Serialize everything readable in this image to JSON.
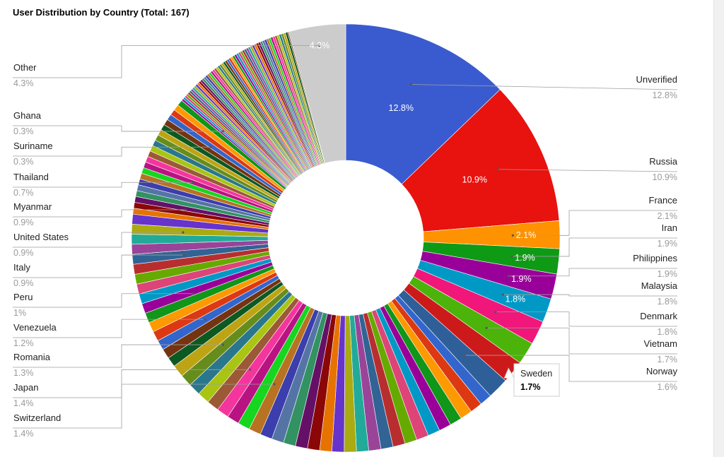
{
  "title": "User Distribution by Country (Total: 167)",
  "chart_data": {
    "type": "pie",
    "donut": true,
    "title": "User Distribution by Country (Total: 167)",
    "slices": [
      {
        "label": "Unverified",
        "value": 12.8,
        "pct_label": "12.8%",
        "color": "#3a5bcf"
      },
      {
        "label": "Russia",
        "value": 10.9,
        "pct_label": "10.9%",
        "color": "#e8120f"
      },
      {
        "label": "France",
        "value": 2.1,
        "pct_label": "2.1%",
        "color": "#ff9200"
      },
      {
        "label": "Iran",
        "value": 1.9,
        "pct_label": "1.9%",
        "color": "#0f9a16"
      },
      {
        "label": "Philippines",
        "value": 1.9,
        "pct_label": "1.9%",
        "color": "#990099"
      },
      {
        "label": "Malaysia",
        "value": 1.8,
        "pct_label": "1.8%",
        "color": "#0099c6"
      },
      {
        "label": "Denmark",
        "value": 1.8,
        "pct_label": "1.8%",
        "color": "#f0167a"
      },
      {
        "label": "Vietnam",
        "value": 1.7,
        "pct_label": "1.7%",
        "color": "#4cb30a"
      },
      {
        "label": "Sweden",
        "value": 1.7,
        "pct_label": "1.7%",
        "color": "#cc1a1a"
      },
      {
        "label": "Norway",
        "value": 1.6,
        "pct_label": "1.6%",
        "color": "#2f5f98"
      }
    ],
    "left_labels": [
      {
        "label": "Other",
        "pct_label": "4.3%"
      },
      {
        "label": "Ghana",
        "pct_label": "0.3%"
      },
      {
        "label": "Suriname",
        "pct_label": "0.3%"
      },
      {
        "label": "Thailand",
        "pct_label": "0.7%"
      },
      {
        "label": "Myanmar",
        "pct_label": "0.9%"
      },
      {
        "label": "United States",
        "pct_label": "0.9%"
      },
      {
        "label": "Italy",
        "pct_label": "0.9%"
      },
      {
        "label": "Peru",
        "pct_label": "1%"
      },
      {
        "label": "Venezuela",
        "pct_label": "1.2%"
      },
      {
        "label": "Romania",
        "pct_label": "1.3%"
      },
      {
        "label": "Japan",
        "pct_label": "1.4%"
      },
      {
        "label": "Switzerland",
        "pct_label": "1.4%"
      }
    ],
    "other_slice": {
      "label": "Other",
      "value": 4.3,
      "pct_label": "4.3%",
      "color": "#cccccc"
    },
    "palette": [
      "#3366cc",
      "#dc3912",
      "#ff9900",
      "#109618",
      "#990099",
      "#0099c6",
      "#dd4477",
      "#66aa00",
      "#b82e2e",
      "#316395",
      "#994499",
      "#22aa99",
      "#aaaa11",
      "#6633cc",
      "#e67300",
      "#8b0707",
      "#651067",
      "#329262",
      "#5574a6",
      "#3b3eac",
      "#b77322",
      "#16d620",
      "#b91383",
      "#f4359e",
      "#9c5935",
      "#a9c413",
      "#2a778d",
      "#668d1c",
      "#bea413",
      "#0c5922",
      "#743411"
    ],
    "tooltip": {
      "name": "Sweden",
      "value": "1.7%"
    }
  }
}
